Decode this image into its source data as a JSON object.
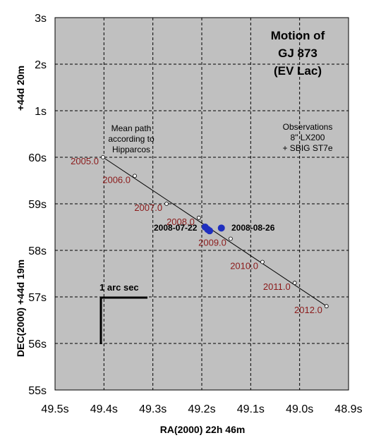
{
  "chart_data": {
    "type": "scatter",
    "title_lines": [
      "Motion of",
      "GJ 873",
      "(EV Lac)"
    ],
    "xlabel": "RA(2000) 22h 46m",
    "ylabel_upper": "+44d 20m",
    "ylabel_lower": "DEC(2000) +44d 19m",
    "x_ticks": [
      "49.5s",
      "49.4s",
      "49.3s",
      "49.2s",
      "49.1s",
      "49.0s",
      "48.9s"
    ],
    "y_ticks": [
      "3s",
      "2s",
      "1s",
      "60s",
      "59s",
      "58s",
      "57s",
      "56s",
      "55s"
    ],
    "xlim": [
      49.5,
      48.9
    ],
    "ylim": [
      55,
      63
    ],
    "x_reversed": true,
    "grid": true,
    "mean_path_start": {
      "x": 49.402,
      "y": 60.0
    },
    "mean_path_end": {
      "x": 48.945,
      "y": 56.8
    },
    "epochs": [
      {
        "label": "2005.0",
        "x": 49.402,
        "y": 60.0
      },
      {
        "label": "2006.0",
        "x": 49.337,
        "y": 59.6
      },
      {
        "label": "2007.0",
        "x": 49.272,
        "y": 59.0
      },
      {
        "label": "2008.0",
        "x": 49.206,
        "y": 58.7
      },
      {
        "label": "2009.0",
        "x": 49.141,
        "y": 58.25
      },
      {
        "label": "2010.0",
        "x": 49.076,
        "y": 57.75
      },
      {
        "label": "2011.0",
        "x": 49.01,
        "y": 57.3
      },
      {
        "label": "2012.0",
        "x": 48.945,
        "y": 56.8
      }
    ],
    "observations": [
      {
        "x": 49.193,
        "y": 58.5
      },
      {
        "x": 49.188,
        "y": 58.45
      },
      {
        "x": 49.184,
        "y": 58.42
      },
      {
        "x": 49.16,
        "y": 58.48
      }
    ],
    "observation_labels": [
      "2008-07-22",
      "2008-08-26"
    ],
    "annotations": {
      "mean_path": [
        "Mean path",
        "according to",
        "Hipparcos"
      ],
      "observations_note": [
        "Observations",
        "8\" LX200",
        "+ SBIG ST7e"
      ]
    },
    "scale_bar_label": "1 arc sec",
    "colors": {
      "plot_background": "#c0c0c0",
      "year_label": "#8b1a1a",
      "observation_marker": "#1f2fbf",
      "grid": "#000000"
    }
  }
}
